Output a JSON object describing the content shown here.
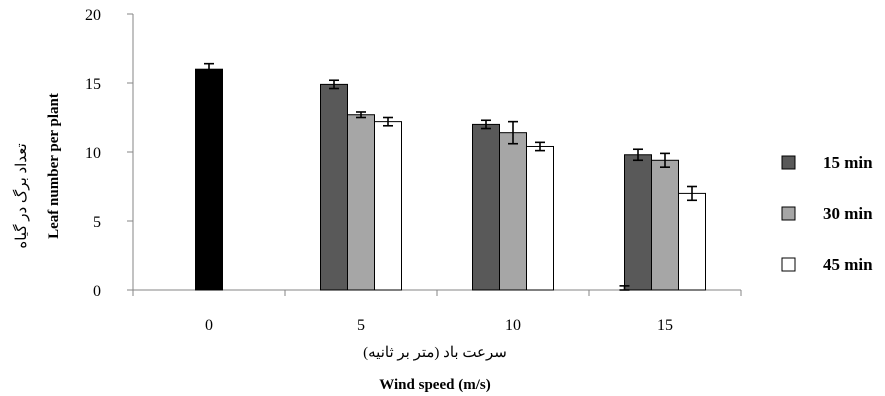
{
  "chart_data": {
    "type": "bar",
    "categories": [
      "0",
      "5",
      "10",
      "15"
    ],
    "control": {
      "values": [
        16.0,
        null,
        null,
        0
      ],
      "errors": [
        0.4,
        null,
        null,
        0.3
      ],
      "color": "#000000"
    },
    "series": [
      {
        "name": "15 min",
        "values": [
          null,
          14.9,
          12.0,
          9.8
        ],
        "errors": [
          null,
          0.3,
          0.3,
          0.4
        ],
        "color": "#595959"
      },
      {
        "name": "30 min",
        "values": [
          null,
          12.7,
          11.4,
          9.4
        ],
        "errors": [
          null,
          0.2,
          0.8,
          0.5
        ],
        "color": "#a6a6a6"
      },
      {
        "name": "45 min",
        "values": [
          null,
          12.2,
          10.4,
          7.0
        ],
        "errors": [
          null,
          0.3,
          0.3,
          0.5
        ],
        "color": "#ffffff"
      }
    ],
    "ylim": [
      0,
      20
    ],
    "yticks": [
      "0",
      "5",
      "10",
      "15",
      "20"
    ],
    "ylabel_fa": "تعداد برگ در گیاه",
    "ylabel_en": "Leaf number per plant",
    "xlabel_fa": "سرعت باد (متر بر ثانیه)",
    "xlabel_en": "Wind speed (m/s)",
    "legend_position": "right",
    "grid": false
  }
}
